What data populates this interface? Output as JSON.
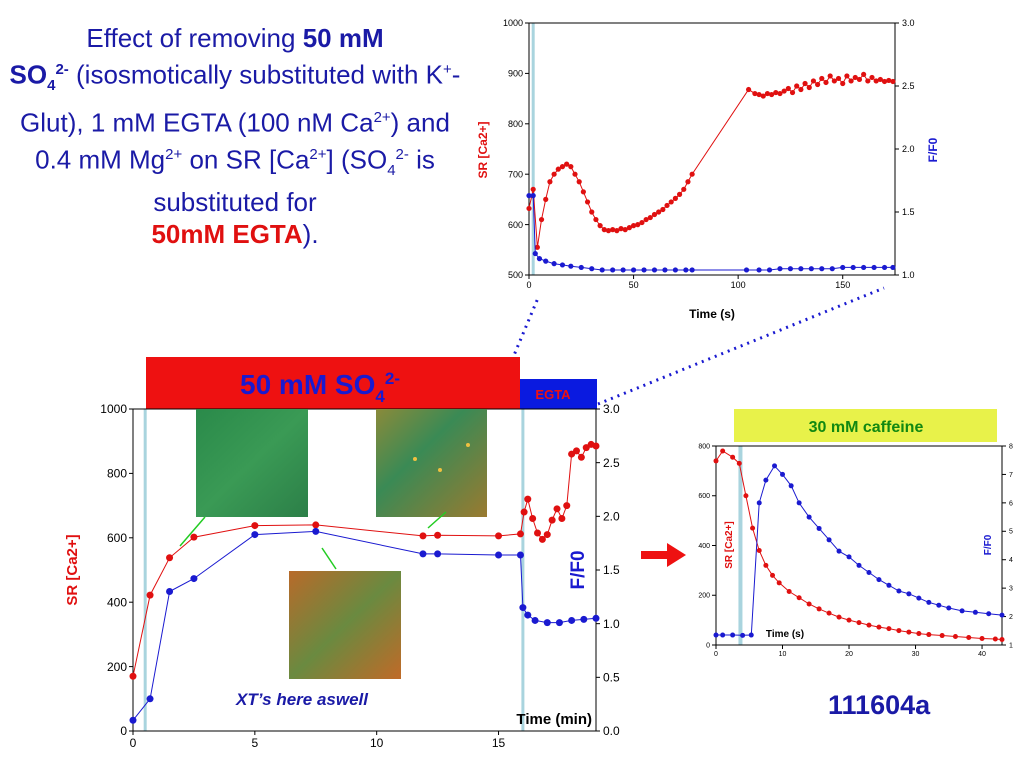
{
  "title": {
    "part1": "Effect of removing ",
    "part2_bold": "50 mM",
    "part3_bold": "SO",
    "part3_sub": "4",
    "part3_sup": "2-",
    "part4": " (isosmotically substituted with K",
    "part4_sup": "+",
    "part5": "-Glut), 1 mM EGTA (100 nM Ca",
    "part5_sup": "2+",
    "part6": ") and 0.4 mM Mg",
    "part6_sup": "2+",
    "part7": " on SR [Ca",
    "part7_sup": "2+",
    "part8": "] (SO",
    "part8_sub": "4",
    "part8_sup": "2-",
    "part9": " is substituted for ",
    "part10_red": "50mM EGTA",
    "part11": ")."
  },
  "solution_bars": {
    "so4_label": "50 mM SO",
    "so4_sub": "4",
    "so4_sup": "2-",
    "egta_label": "EGTA",
    "caffeine_label": "30 mM caffeine"
  },
  "annotations": {
    "xt_note": "XT’s here aswell",
    "experiment_id": "111604a"
  },
  "colors": {
    "red_series": "#e01010",
    "blue_series": "#1a1ad0",
    "so4_bar": "#ee1111",
    "egta_bar": "#0a1ae0",
    "caffeine_bar": "#e8f24a",
    "shade": "#a9d4de",
    "title_blue": "#1a1aa6"
  },
  "chart_data": [
    {
      "id": "main",
      "type": "line",
      "xlabel": "Time (min)",
      "ylabel_left": "SR [Ca2+]",
      "ylabel_right": "F/F0",
      "xlim": [
        0,
        19
      ],
      "ylim_left": [
        0,
        1000
      ],
      "ylim_right": [
        0,
        3.0
      ],
      "xticks": [
        0,
        5,
        10,
        15
      ],
      "yticks_left": [
        0,
        200,
        400,
        600,
        800,
        1000
      ],
      "yticks_right": [
        "0.0",
        "0.5",
        "1.0",
        "1.5",
        "2.0",
        "2.5",
        "3.0"
      ],
      "series": [
        {
          "name": "SR [Ca2+]",
          "axis": "left",
          "points": [
            [
              0,
              170
            ],
            [
              0.7,
              422
            ],
            [
              1.5,
              538
            ],
            [
              2.5,
              602
            ],
            [
              5,
              638
            ],
            [
              7.5,
              640
            ],
            [
              11.9,
              606
            ],
            [
              12.5,
              608
            ],
            [
              15,
              606
            ],
            [
              15.9,
              612
            ],
            [
              16.05,
              680
            ],
            [
              16.2,
              720
            ],
            [
              16.4,
              660
            ],
            [
              16.6,
              615
            ],
            [
              16.8,
              595
            ],
            [
              17.0,
              610
            ],
            [
              17.2,
              655
            ],
            [
              17.4,
              690
            ],
            [
              17.6,
              660
            ],
            [
              17.8,
              700
            ],
            [
              18.0,
              860
            ],
            [
              18.2,
              870
            ],
            [
              18.4,
              850
            ],
            [
              18.6,
              880
            ],
            [
              18.8,
              890
            ],
            [
              19.0,
              885
            ]
          ]
        },
        {
          "name": "F/F0",
          "axis": "right",
          "points": [
            [
              0,
              0.1
            ],
            [
              0.7,
              0.3
            ],
            [
              1.5,
              1.3
            ],
            [
              2.5,
              1.42
            ],
            [
              5,
              1.83
            ],
            [
              7.5,
              1.86
            ],
            [
              11.9,
              1.65
            ],
            [
              12.5,
              1.65
            ],
            [
              15,
              1.64
            ],
            [
              15.9,
              1.64
            ],
            [
              16.0,
              1.15
            ],
            [
              16.2,
              1.08
            ],
            [
              16.5,
              1.03
            ],
            [
              17.0,
              1.01
            ],
            [
              17.5,
              1.01
            ],
            [
              18.0,
              1.03
            ],
            [
              18.5,
              1.04
            ],
            [
              19.0,
              1.05
            ]
          ]
        }
      ],
      "shaded_x": [
        0.5,
        16.0
      ]
    },
    {
      "id": "inset-top",
      "type": "line",
      "xlabel": "Time (s)",
      "ylabel_left": "SR [Ca2+]",
      "ylabel_right": "F/F0",
      "xlim": [
        0,
        175
      ],
      "ylim_left": [
        500,
        1000
      ],
      "ylim_right": [
        1.0,
        3.0
      ],
      "xticks": [
        0,
        50,
        100,
        150
      ],
      "yticks_left": [
        500,
        600,
        700,
        800,
        900,
        1000
      ],
      "yticks_right": [
        "1.0",
        "1.5",
        "2.0",
        "2.5",
        "3.0"
      ],
      "series": [
        {
          "name": "SR [Ca2+]",
          "axis": "left",
          "points": [
            [
              0,
              632
            ],
            [
              2,
              670
            ],
            [
              4,
              555
            ],
            [
              6,
              610
            ],
            [
              8,
              650
            ],
            [
              10,
              685
            ],
            [
              12,
              700
            ],
            [
              14,
              710
            ],
            [
              16,
              715
            ],
            [
              18,
              720
            ],
            [
              20,
              715
            ],
            [
              22,
              700
            ],
            [
              24,
              685
            ],
            [
              26,
              665
            ],
            [
              28,
              645
            ],
            [
              30,
              625
            ],
            [
              32,
              610
            ],
            [
              34,
              598
            ],
            [
              36,
              590
            ],
            [
              38,
              588
            ],
            [
              40,
              590
            ],
            [
              42,
              588
            ],
            [
              44,
              592
            ],
            [
              46,
              590
            ],
            [
              48,
              594
            ],
            [
              50,
              598
            ],
            [
              52,
              600
            ],
            [
              54,
              604
            ],
            [
              56,
              610
            ],
            [
              58,
              614
            ],
            [
              60,
              620
            ],
            [
              62,
              625
            ],
            [
              64,
              630
            ],
            [
              66,
              638
            ],
            [
              68,
              645
            ],
            [
              70,
              652
            ],
            [
              72,
              660
            ],
            [
              74,
              670
            ],
            [
              76,
              685
            ],
            [
              78,
              700
            ],
            [
              105,
              868
            ],
            [
              108,
              860
            ],
            [
              110,
              858
            ],
            [
              112,
              855
            ],
            [
              114,
              860
            ],
            [
              116,
              858
            ],
            [
              118,
              862
            ],
            [
              120,
              860
            ],
            [
              122,
              865
            ],
            [
              124,
              870
            ],
            [
              126,
              862
            ],
            [
              128,
              875
            ],
            [
              130,
              868
            ],
            [
              132,
              880
            ],
            [
              134,
              872
            ],
            [
              136,
              885
            ],
            [
              138,
              878
            ],
            [
              140,
              890
            ],
            [
              142,
              882
            ],
            [
              144,
              895
            ],
            [
              146,
              885
            ],
            [
              148,
              890
            ],
            [
              150,
              880
            ],
            [
              152,
              895
            ],
            [
              154,
              885
            ],
            [
              156,
              892
            ],
            [
              158,
              888
            ],
            [
              160,
              898
            ],
            [
              162,
              885
            ],
            [
              164,
              892
            ],
            [
              166,
              885
            ],
            [
              168,
              888
            ],
            [
              170,
              884
            ],
            [
              172,
              886
            ],
            [
              174,
              884
            ]
          ]
        },
        {
          "name": "F/F0",
          "axis": "right",
          "points": [
            [
              0,
              1.63
            ],
            [
              2,
              1.63
            ],
            [
              3,
              1.17
            ],
            [
              5,
              1.13
            ],
            [
              8,
              1.11
            ],
            [
              12,
              1.09
            ],
            [
              16,
              1.08
            ],
            [
              20,
              1.07
            ],
            [
              25,
              1.06
            ],
            [
              30,
              1.05
            ],
            [
              35,
              1.04
            ],
            [
              40,
              1.04
            ],
            [
              45,
              1.04
            ],
            [
              50,
              1.04
            ],
            [
              55,
              1.04
            ],
            [
              60,
              1.04
            ],
            [
              65,
              1.04
            ],
            [
              70,
              1.04
            ],
            [
              75,
              1.04
            ],
            [
              78,
              1.04
            ],
            [
              104,
              1.04
            ],
            [
              110,
              1.04
            ],
            [
              115,
              1.04
            ],
            [
              120,
              1.05
            ],
            [
              125,
              1.05
            ],
            [
              130,
              1.05
            ],
            [
              135,
              1.05
            ],
            [
              140,
              1.05
            ],
            [
              145,
              1.05
            ],
            [
              150,
              1.06
            ],
            [
              155,
              1.06
            ],
            [
              160,
              1.06
            ],
            [
              165,
              1.06
            ],
            [
              170,
              1.06
            ],
            [
              174,
              1.06
            ]
          ]
        }
      ],
      "shaded_x": [
        2,
        2
      ]
    },
    {
      "id": "caffeine",
      "type": "line",
      "xlabel": "Time (s)",
      "ylabel_left": "SR [Ca2+]",
      "ylabel_right": "F/F0",
      "xlim": [
        0,
        43
      ],
      "ylim_left": [
        0,
        800
      ],
      "ylim_right": [
        1,
        8
      ],
      "xticks": [
        0,
        10,
        20,
        30,
        40
      ],
      "yticks_left": [
        0,
        200,
        400,
        600,
        800
      ],
      "yticks_right": [
        "1",
        "2",
        "3",
        "4",
        "5",
        "6",
        "7",
        "8"
      ],
      "series": [
        {
          "name": "SR [Ca2+]",
          "axis": "left",
          "points": [
            [
              0,
              740
            ],
            [
              1,
              780
            ],
            [
              2.5,
              755
            ],
            [
              3.5,
              730
            ],
            [
              4.5,
              600
            ],
            [
              5.5,
              470
            ],
            [
              6.5,
              380
            ],
            [
              7.5,
              320
            ],
            [
              8.5,
              280
            ],
            [
              9.5,
              250
            ],
            [
              11,
              215
            ],
            [
              12.5,
              190
            ],
            [
              14,
              165
            ],
            [
              15.5,
              145
            ],
            [
              17,
              128
            ],
            [
              18.5,
              112
            ],
            [
              20,
              100
            ],
            [
              21.5,
              90
            ],
            [
              23,
              80
            ],
            [
              24.5,
              72
            ],
            [
              26,
              66
            ],
            [
              27.5,
              58
            ],
            [
              29,
              52
            ],
            [
              30.5,
              46
            ],
            [
              32,
              42
            ],
            [
              34,
              38
            ],
            [
              36,
              34
            ],
            [
              38,
              30
            ],
            [
              40,
              26
            ],
            [
              42,
              24
            ],
            [
              43,
              22
            ]
          ]
        },
        {
          "name": "F/F0",
          "axis": "right",
          "points": [
            [
              0,
              1.35
            ],
            [
              1,
              1.35
            ],
            [
              2.5,
              1.35
            ],
            [
              4,
              1.34
            ],
            [
              5.3,
              1.35
            ],
            [
              6.5,
              6.0
            ],
            [
              7.5,
              6.8
            ],
            [
              8.8,
              7.3
            ],
            [
              10,
              7.0
            ],
            [
              11.3,
              6.6
            ],
            [
              12.5,
              6.0
            ],
            [
              14,
              5.5
            ],
            [
              15.5,
              5.1
            ],
            [
              17,
              4.7
            ],
            [
              18.5,
              4.3
            ],
            [
              20,
              4.1
            ],
            [
              21.5,
              3.8
            ],
            [
              23,
              3.55
            ],
            [
              24.5,
              3.3
            ],
            [
              26,
              3.1
            ],
            [
              27.5,
              2.9
            ],
            [
              29,
              2.8
            ],
            [
              30.5,
              2.65
            ],
            [
              32,
              2.5
            ],
            [
              33.5,
              2.4
            ],
            [
              35,
              2.3
            ],
            [
              37,
              2.2
            ],
            [
              39,
              2.15
            ],
            [
              41,
              2.1
            ],
            [
              43,
              2.05
            ]
          ]
        }
      ],
      "shaded_x": [
        3.6,
        4.2
      ]
    }
  ]
}
